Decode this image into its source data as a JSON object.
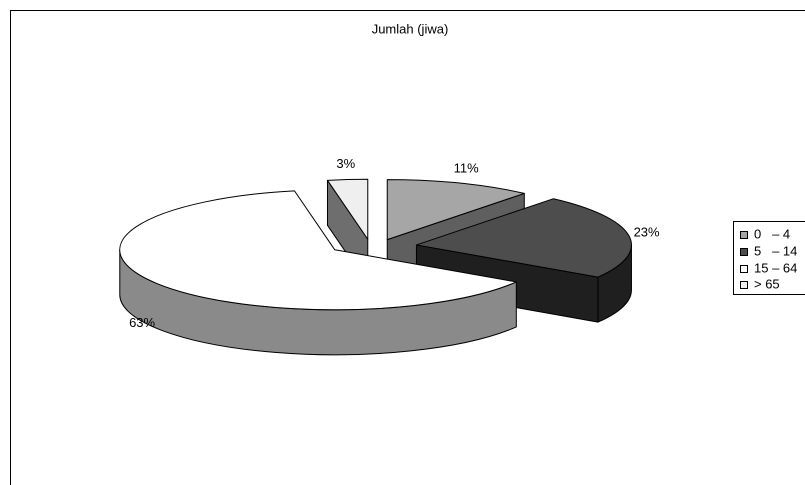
{
  "chart_data": {
    "type": "pie",
    "three_d": true,
    "exploded": true,
    "title": "Jumlah (jiwa)",
    "categories": [
      "0   – 4",
      "5   – 14",
      "15 – 64",
      "> 65"
    ],
    "values": [
      11,
      23,
      63,
      3
    ],
    "data_labels": [
      "11%",
      "23%",
      "63%",
      "3%"
    ],
    "colors": [
      "#a6a6a6",
      "#4d4d4d",
      "#ffffff",
      "#efefef"
    ],
    "side_colors": [
      "#5f5f5f",
      "#1f1f1f",
      "#8a8a8a",
      "#6e6e6e"
    ],
    "legend_position": "right"
  }
}
